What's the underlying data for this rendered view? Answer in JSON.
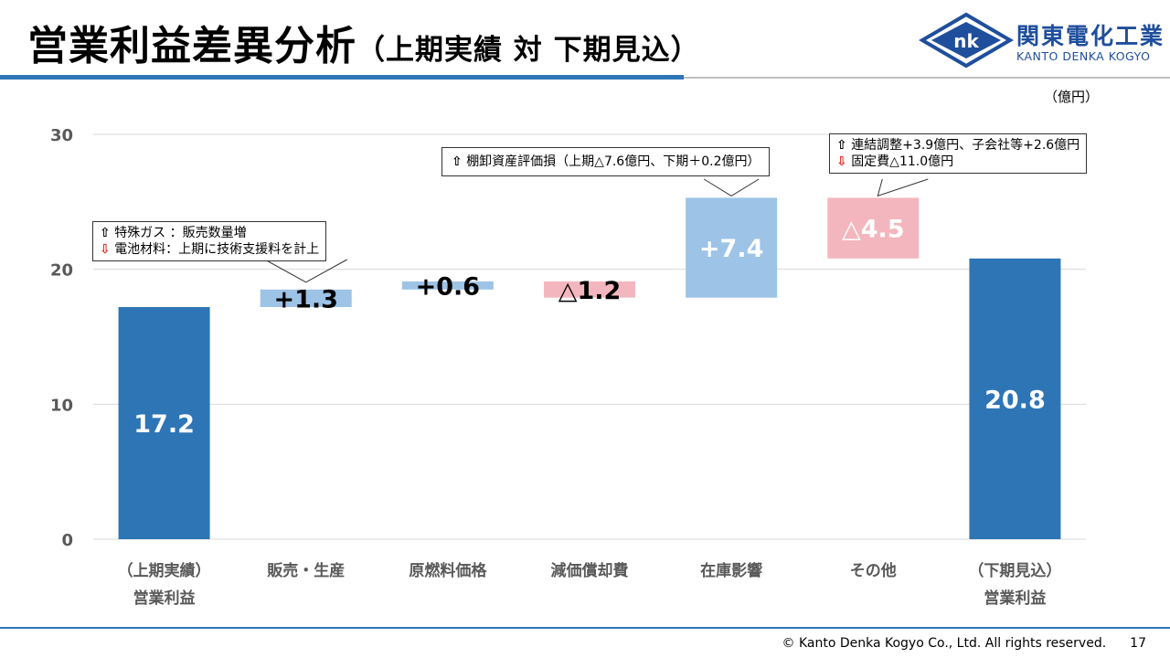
{
  "header": {
    "title_main": "営業利益差異分析",
    "title_sub": "（上期実績 対 下期見込）",
    "company_jp": "関東電化工業",
    "company_en": "KANTO DENKA KOGYO"
  },
  "unit": "（億円）",
  "colors": {
    "total": "#2e75b6",
    "increase": "#9dc3e6",
    "decrease": "#f4b6be",
    "grid": "#d9d9d9"
  },
  "chart_data": {
    "type": "bar",
    "subtype": "waterfall",
    "categories": [
      "（上期実績）\n営業利益",
      "販売・生産",
      "原燃料価格",
      "減価償却費",
      "在庫影響",
      "その他",
      "（下期見込）\n営業利益"
    ],
    "bars": [
      {
        "kind": "total",
        "start": 0,
        "end": 17.2,
        "label": "17.2"
      },
      {
        "kind": "increase",
        "start": 17.2,
        "end": 18.5,
        "label": "+1.3"
      },
      {
        "kind": "increase",
        "start": 18.5,
        "end": 19.1,
        "label": "+0.6"
      },
      {
        "kind": "decrease",
        "start": 19.1,
        "end": 17.9,
        "label": "△1.2"
      },
      {
        "kind": "increase",
        "start": 17.9,
        "end": 25.3,
        "label": "+7.4"
      },
      {
        "kind": "decrease",
        "start": 25.3,
        "end": 20.8,
        "label": "△4.5"
      },
      {
        "kind": "total",
        "start": 0,
        "end": 20.8,
        "label": "20.8"
      }
    ],
    "yticks": [
      "0",
      "10",
      "20",
      "30"
    ],
    "ylim": [
      0,
      30
    ],
    "grid": true
  },
  "callouts": {
    "sales": {
      "up_text": "特殊ガス ：販売数量増",
      "down_text": "電池材料：上期に技術支援料を計上"
    },
    "inventory": {
      "up_text": "棚卸資産評価損（上期△7.6億円、下期＋0.2億円）"
    },
    "other": {
      "up_text": "連結調整+3.9億円、子会社等+2.6億円",
      "down_text": "固定費△11.0億円"
    }
  },
  "symbols": {
    "up": "⇧",
    "down": "⇩"
  },
  "footer": {
    "copyright": "© Kanto Denka Kogyo Co., Ltd. All rights reserved.",
    "page": "17"
  }
}
